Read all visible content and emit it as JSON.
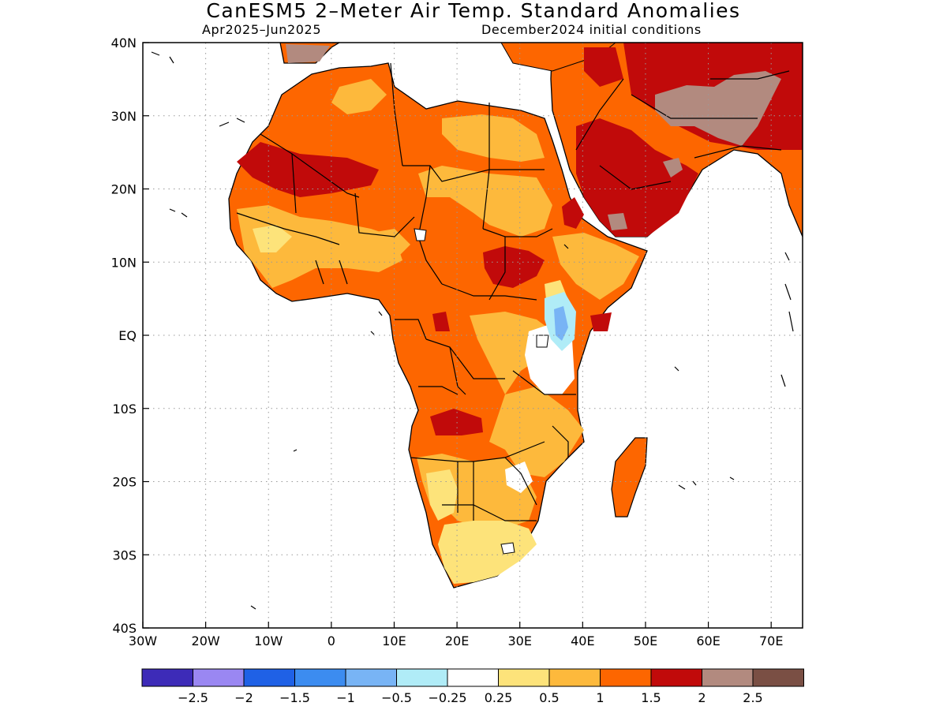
{
  "title": "CanESM5 2–Meter Air Temp. Standard Anomalies",
  "subtitle_left": "Apr2025–Jun2025",
  "subtitle_right": "December2024 initial conditions",
  "map": {
    "lon_range": [
      -30,
      75
    ],
    "lat_range": [
      -40,
      40
    ],
    "lat_ticks": [
      {
        "value": 40,
        "label": "40N"
      },
      {
        "value": 30,
        "label": "30N"
      },
      {
        "value": 20,
        "label": "20N"
      },
      {
        "value": 10,
        "label": "10N"
      },
      {
        "value": 0,
        "label": "EQ"
      },
      {
        "value": -10,
        "label": "10S"
      },
      {
        "value": -20,
        "label": "20S"
      },
      {
        "value": -30,
        "label": "30S"
      },
      {
        "value": -40,
        "label": "40S"
      }
    ],
    "lon_ticks": [
      {
        "value": -30,
        "label": "30W"
      },
      {
        "value": -20,
        "label": "20W"
      },
      {
        "value": -10,
        "label": "10W"
      },
      {
        "value": 0,
        "label": "0"
      },
      {
        "value": 10,
        "label": "10E"
      },
      {
        "value": 20,
        "label": "20E"
      },
      {
        "value": 30,
        "label": "30E"
      },
      {
        "value": 40,
        "label": "40E"
      },
      {
        "value": 50,
        "label": "50E"
      },
      {
        "value": 60,
        "label": "60E"
      },
      {
        "value": 70,
        "label": "70E"
      }
    ]
  },
  "colorbar": {
    "colors": [
      "#3d2bb8",
      "#9a87f2",
      "#1f61e6",
      "#3c8cf0",
      "#78b4f5",
      "#b0ecf7",
      "#ffffff",
      "#fde37a",
      "#fdb93c",
      "#fd6600",
      "#c10a0a",
      "#b28a7f",
      "#7a4f44"
    ],
    "labels": [
      "−2.5",
      "−2",
      "−1.5",
      "−1",
      "−0.5",
      "−0.25",
      "0.25",
      "0.5",
      "1",
      "1.5",
      "2",
      "2.5"
    ]
  }
}
